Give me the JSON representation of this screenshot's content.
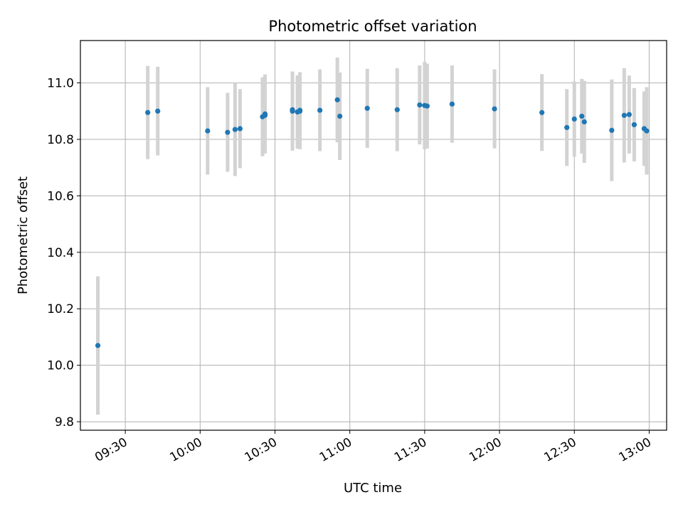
{
  "chart_data": {
    "type": "scatter",
    "title": "Photometric offset variation",
    "xlabel": "UTC time",
    "ylabel": "Photometric offset",
    "x_tick_labels": [
      "09:30",
      "10:00",
      "10:30",
      "11:00",
      "11:30",
      "12:00",
      "12:30",
      "13:00"
    ],
    "x_tick_values": [
      "09:30",
      "10:00",
      "10:30",
      "11:00",
      "11:30",
      "12:00",
      "12:30",
      "13:00"
    ],
    "y_tick_labels": [
      "9.8",
      "10.0",
      "10.2",
      "10.4",
      "10.6",
      "10.8",
      "11.0"
    ],
    "y_tick_values": [
      9.8,
      10.0,
      10.2,
      10.4,
      10.6,
      10.8,
      11.0
    ],
    "xlim": [
      "09:12",
      "13:07"
    ],
    "ylim": [
      9.77,
      11.15
    ],
    "grid": true,
    "colors": {
      "point": "#1f77b4",
      "errorbar": "#d3d3d3",
      "grid": "#b0b0b0"
    },
    "points": [
      {
        "x": "09:19",
        "y": 10.07,
        "yerr": 0.245
      },
      {
        "x": "09:39",
        "y": 10.895,
        "yerr": 0.165
      },
      {
        "x": "09:43",
        "y": 10.9,
        "yerr": 0.157
      },
      {
        "x": "10:03",
        "y": 10.83,
        "yerr": 0.155
      },
      {
        "x": "10:11",
        "y": 10.825,
        "yerr": 0.14
      },
      {
        "x": "10:14",
        "y": 10.835,
        "yerr": 0.165
      },
      {
        "x": "10:16",
        "y": 10.838,
        "yerr": 0.14
      },
      {
        "x": "10:25",
        "y": 10.88,
        "yerr": 0.14
      },
      {
        "x": "10:26",
        "y": 10.89,
        "yerr": 0.14
      },
      {
        "x": "10:26",
        "y": 10.885,
        "yerr": 0.13
      },
      {
        "x": "10:37",
        "y": 10.9,
        "yerr": 0.14
      },
      {
        "x": "10:37",
        "y": 10.905,
        "yerr": 0.135
      },
      {
        "x": "10:39",
        "y": 10.897,
        "yerr": 0.13
      },
      {
        "x": "10:40",
        "y": 10.9,
        "yerr": 0.135
      },
      {
        "x": "10:40",
        "y": 10.903,
        "yerr": 0.135
      },
      {
        "x": "10:48",
        "y": 10.903,
        "yerr": 0.145
      },
      {
        "x": "10:55",
        "y": 10.94,
        "yerr": 0.15
      },
      {
        "x": "10:56",
        "y": 10.882,
        "yerr": 0.155
      },
      {
        "x": "11:07",
        "y": 10.91,
        "yerr": 0.14
      },
      {
        "x": "11:19",
        "y": 10.905,
        "yerr": 0.147
      },
      {
        "x": "11:28",
        "y": 10.922,
        "yerr": 0.14
      },
      {
        "x": "11:30",
        "y": 10.92,
        "yerr": 0.155
      },
      {
        "x": "11:31",
        "y": 10.918,
        "yerr": 0.15
      },
      {
        "x": "11:41",
        "y": 10.925,
        "yerr": 0.137
      },
      {
        "x": "11:58",
        "y": 10.908,
        "yerr": 0.14
      },
      {
        "x": "12:17",
        "y": 10.895,
        "yerr": 0.136
      },
      {
        "x": "12:27",
        "y": 10.842,
        "yerr": 0.136
      },
      {
        "x": "12:30",
        "y": 10.872,
        "yerr": 0.133
      },
      {
        "x": "12:33",
        "y": 10.882,
        "yerr": 0.132
      },
      {
        "x": "12:34",
        "y": 10.862,
        "yerr": 0.145
      },
      {
        "x": "12:45",
        "y": 10.832,
        "yerr": 0.18
      },
      {
        "x": "12:50",
        "y": 10.885,
        "yerr": 0.167
      },
      {
        "x": "12:52",
        "y": 10.888,
        "yerr": 0.138
      },
      {
        "x": "12:54",
        "y": 10.852,
        "yerr": 0.13
      },
      {
        "x": "12:58",
        "y": 10.838,
        "yerr": 0.132
      },
      {
        "x": "12:59",
        "y": 10.83,
        "yerr": 0.155
      }
    ]
  }
}
